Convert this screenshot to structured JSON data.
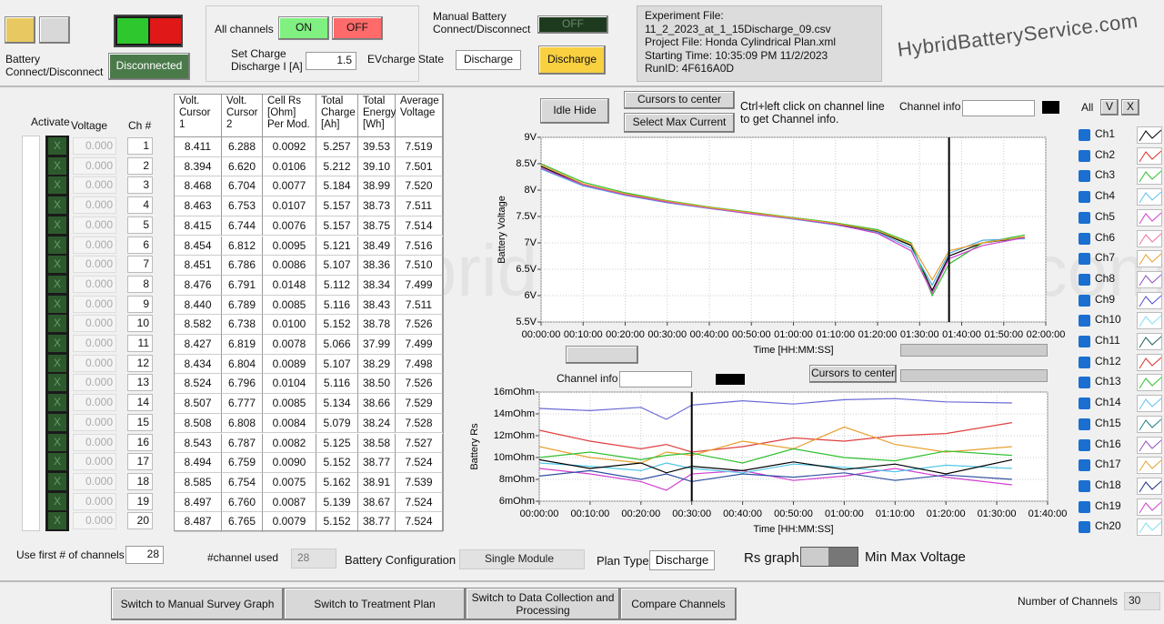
{
  "header": {
    "battery_label": "Battery\nConnect/Disconnect",
    "disconnected": "Disconnected",
    "all_channels": "All channels",
    "on": "ON",
    "off": "OFF",
    "set_charge_label": "Set Charge\nDischarge  I [A]",
    "set_charge_value": "1.5",
    "manual_battery": "Manual Battery\nConnect/Disconnect",
    "manual_off": "OFF",
    "evcharge_label": "EVcharge State",
    "evcharge_value": "Discharge",
    "discharge_button": "Discharge",
    "experiment_lines": [
      "Experiment File:",
      "11_2_2023_at_1_15Discharge_09.csv",
      "Project File: Honda Cylindrical Plan.xml",
      "Starting Time: 10:35:09 PM 11/2/2023",
      "RunID: 4F616A0D"
    ],
    "logo": "HybridBatteryService.com"
  },
  "left": {
    "activate": "Activate",
    "voltage": "Voltage",
    "ch": "Ch #",
    "activate_mark": "X",
    "voltages": [
      "0.000",
      "0.000",
      "0.000",
      "0.000",
      "0.000",
      "0.000",
      "0.000",
      "0.000",
      "0.000",
      "0.000",
      "0.000",
      "0.000",
      "0.000",
      "0.000",
      "0.000",
      "0.000",
      "0.000",
      "0.000",
      "0.000",
      "0.000"
    ],
    "channels": [
      "1",
      "2",
      "3",
      "4",
      "5",
      "6",
      "7",
      "8",
      "9",
      "10",
      "11",
      "12",
      "13",
      "14",
      "15",
      "16",
      "17",
      "18",
      "19",
      "20"
    ]
  },
  "table": {
    "headers": [
      "Volt.\nCursor\n1",
      "Volt.\nCursor\n2",
      "Cell Rs\n[Ohm]\nPer Mod.",
      "Total\nCharge\n[Ah]",
      "Total\nEnergy\n[Wh]",
      "Average\nVoltage"
    ],
    "rows": [
      [
        "8.411",
        "6.288",
        "0.0092",
        "5.257",
        "39.53",
        "7.519"
      ],
      [
        "8.394",
        "6.620",
        "0.0106",
        "5.212",
        "39.10",
        "7.501"
      ],
      [
        "8.468",
        "6.704",
        "0.0077",
        "5.184",
        "38.99",
        "7.520"
      ],
      [
        "8.463",
        "6.753",
        "0.0107",
        "5.157",
        "38.73",
        "7.511"
      ],
      [
        "8.415",
        "6.744",
        "0.0076",
        "5.157",
        "38.75",
        "7.514"
      ],
      [
        "8.454",
        "6.812",
        "0.0095",
        "5.121",
        "38.49",
        "7.516"
      ],
      [
        "8.451",
        "6.786",
        "0.0086",
        "5.107",
        "38.36",
        "7.510"
      ],
      [
        "8.476",
        "6.791",
        "0.0148",
        "5.112",
        "38.34",
        "7.499"
      ],
      [
        "8.440",
        "6.789",
        "0.0085",
        "5.116",
        "38.43",
        "7.511"
      ],
      [
        "8.582",
        "6.738",
        "0.0100",
        "5.152",
        "38.78",
        "7.526"
      ],
      [
        "8.427",
        "6.819",
        "0.0078",
        "5.066",
        "37.99",
        "7.499"
      ],
      [
        "8.434",
        "6.804",
        "0.0089",
        "5.107",
        "38.29",
        "7.498"
      ],
      [
        "8.524",
        "6.796",
        "0.0104",
        "5.116",
        "38.50",
        "7.526"
      ],
      [
        "8.507",
        "6.777",
        "0.0085",
        "5.134",
        "38.66",
        "7.529"
      ],
      [
        "8.508",
        "6.808",
        "0.0084",
        "5.079",
        "38.24",
        "7.528"
      ],
      [
        "8.543",
        "6.787",
        "0.0082",
        "5.125",
        "38.58",
        "7.527"
      ],
      [
        "8.494",
        "6.759",
        "0.0090",
        "5.152",
        "38.77",
        "7.524"
      ],
      [
        "8.585",
        "6.754",
        "0.0075",
        "5.162",
        "38.91",
        "7.539"
      ],
      [
        "8.497",
        "6.760",
        "0.0087",
        "5.139",
        "38.67",
        "7.524"
      ],
      [
        "8.487",
        "6.765",
        "0.0079",
        "5.152",
        "38.77",
        "7.524"
      ]
    ]
  },
  "controls": {
    "idle_hide": "Idle Hide",
    "cursors_center": "Cursors to center",
    "select_max": "Select  Max Current",
    "hint": "Ctrl+left click on channel line\nto get Channel info.",
    "channel_info": "Channel info",
    "all": "All",
    "v": "V",
    "x": "X",
    "channel_info_2": "Channel info",
    "cursors_center_2": "Cursors to center"
  },
  "channel_list": [
    {
      "name": "Ch1",
      "color": "#000000"
    },
    {
      "name": "Ch2",
      "color": "#e03030"
    },
    {
      "name": "Ch3",
      "color": "#30c030"
    },
    {
      "name": "Ch4",
      "color": "#60c0f0"
    },
    {
      "name": "Ch5",
      "color": "#d040d0"
    },
    {
      "name": "Ch6",
      "color": "#f070a0"
    },
    {
      "name": "Ch7",
      "color": "#e8a030"
    },
    {
      "name": "Ch8",
      "color": "#9050c0"
    },
    {
      "name": "Ch9",
      "color": "#5050d0"
    },
    {
      "name": "Ch10",
      "color": "#80e0f0"
    },
    {
      "name": "Ch11",
      "color": "#206060"
    },
    {
      "name": "Ch12",
      "color": "#e03030"
    },
    {
      "name": "Ch13",
      "color": "#30c030"
    },
    {
      "name": "Ch14",
      "color": "#60c0f0"
    },
    {
      "name": "Ch15",
      "color": "#208080"
    },
    {
      "name": "Ch16",
      "color": "#9050c0"
    },
    {
      "name": "Ch17",
      "color": "#e8a030"
    },
    {
      "name": "Ch18",
      "color": "#203080"
    },
    {
      "name": "Ch19",
      "color": "#d040d0"
    },
    {
      "name": "Ch20",
      "color": "#80e0f0"
    }
  ],
  "chart_data": [
    {
      "type": "line",
      "y_label": "Battery Voltage",
      "x_label": "Time [HH:MM:SS]",
      "cursor": 97,
      "xlim": [
        0,
        120
      ],
      "xticks": [
        {
          "value": 0,
          "label": "00:00:00"
        },
        {
          "value": 10,
          "label": "00:10:00"
        },
        {
          "value": 20,
          "label": "00:20:00"
        },
        {
          "value": 30,
          "label": "00:30:00"
        },
        {
          "value": 40,
          "label": "00:40:00"
        },
        {
          "value": 50,
          "label": "00:50:00"
        },
        {
          "value": 60,
          "label": "01:00:00"
        },
        {
          "value": 70,
          "label": "01:10:00"
        },
        {
          "value": 80,
          "label": "01:20:00"
        },
        {
          "value": 90,
          "label": "01:30:00"
        },
        {
          "value": 100,
          "label": "01:40:00"
        },
        {
          "value": 110,
          "label": "01:50:00"
        },
        {
          "value": 120,
          "label": "02:00:00"
        }
      ],
      "ylim": [
        5.5,
        9
      ],
      "yticks": [
        {
          "value": 5.5,
          "label": "5.5V"
        },
        {
          "value": 6,
          "label": "6V"
        },
        {
          "value": 6.5,
          "label": "6.5V"
        },
        {
          "value": 7,
          "label": "7V"
        },
        {
          "value": 7.5,
          "label": "7.5V"
        },
        {
          "value": 8,
          "label": "8V"
        },
        {
          "value": 8.5,
          "label": "8.5V"
        },
        {
          "value": 9,
          "label": "9V"
        }
      ],
      "grid": true,
      "x": [
        0,
        10,
        20,
        30,
        40,
        50,
        60,
        70,
        80,
        88,
        93,
        97,
        105,
        115
      ],
      "series": [
        {
          "color": "#000000",
          "values": [
            8.45,
            8.1,
            7.92,
            7.78,
            7.66,
            7.56,
            7.46,
            7.36,
            7.22,
            6.95,
            6.1,
            6.75,
            7.0,
            7.1
          ]
        },
        {
          "color": "#30c030",
          "values": [
            8.5,
            8.15,
            7.95,
            7.8,
            7.68,
            7.58,
            7.48,
            7.38,
            7.25,
            7.0,
            6.0,
            6.6,
            7.0,
            7.15
          ]
        },
        {
          "color": "#4aa8e0",
          "values": [
            8.4,
            8.08,
            7.9,
            7.76,
            7.65,
            7.55,
            7.45,
            7.34,
            7.2,
            6.9,
            6.2,
            6.8,
            7.05,
            7.08
          ]
        },
        {
          "color": "#d040d0",
          "values": [
            8.42,
            8.1,
            7.91,
            7.77,
            7.66,
            7.55,
            7.46,
            7.35,
            7.18,
            6.85,
            6.05,
            6.7,
            6.95,
            7.1
          ]
        },
        {
          "color": "#e8a030",
          "values": [
            8.48,
            8.12,
            7.93,
            7.79,
            7.67,
            7.57,
            7.47,
            7.37,
            7.23,
            6.98,
            6.3,
            6.85,
            7.0,
            7.12
          ]
        }
      ]
    },
    {
      "type": "line",
      "y_label": "Battery Rs",
      "x_label": "Time [HH:MM:SS]",
      "cursor": 30,
      "xlim": [
        0,
        100
      ],
      "xticks": [
        {
          "value": 0,
          "label": "00:00:00"
        },
        {
          "value": 10,
          "label": "00:10:00"
        },
        {
          "value": 20,
          "label": "00:20:00"
        },
        {
          "value": 30,
          "label": "00:30:00"
        },
        {
          "value": 40,
          "label": "00:40:00"
        },
        {
          "value": 50,
          "label": "00:50:00"
        },
        {
          "value": 60,
          "label": "01:00:00"
        },
        {
          "value": 70,
          "label": "01:10:00"
        },
        {
          "value": 80,
          "label": "01:20:00"
        },
        {
          "value": 90,
          "label": "01:30:00"
        },
        {
          "value": 100,
          "label": "01:40:00"
        }
      ],
      "ylim": [
        6,
        16
      ],
      "yticks": [
        {
          "value": 6,
          "label": "6mOhm"
        },
        {
          "value": 8,
          "label": "8mOhm"
        },
        {
          "value": 10,
          "label": "10mOhm"
        },
        {
          "value": 12,
          "label": "12mOhm"
        },
        {
          "value": 14,
          "label": "14mOhm"
        },
        {
          "value": 16,
          "label": "16mOhm"
        }
      ],
      "grid": true,
      "x": [
        0,
        10,
        20,
        25,
        30,
        40,
        50,
        60,
        70,
        80,
        93
      ],
      "series": [
        {
          "color": "#6b6bd6",
          "values": [
            14.5,
            14.3,
            14.6,
            13.5,
            14.8,
            15.2,
            14.9,
            15.3,
            15.4,
            15.1,
            15.0
          ]
        },
        {
          "color": "#e04040",
          "values": [
            12.5,
            11.5,
            10.8,
            11.2,
            10.5,
            11.0,
            11.8,
            11.5,
            12.0,
            12.2,
            13.2
          ]
        },
        {
          "color": "#e8a030",
          "values": [
            11.0,
            10.0,
            9.5,
            10.5,
            10.2,
            11.5,
            10.8,
            12.8,
            11.2,
            10.5,
            11.0
          ]
        },
        {
          "color": "#30c030",
          "values": [
            10.0,
            10.5,
            9.8,
            10.2,
            10.4,
            9.5,
            10.8,
            10.0,
            9.7,
            10.6,
            10.2
          ]
        },
        {
          "color": "#d040d0",
          "values": [
            9.0,
            8.5,
            7.8,
            7.0,
            8.5,
            8.8,
            7.9,
            8.3,
            9.0,
            8.2,
            7.5
          ]
        },
        {
          "color": "#50c8e8",
          "values": [
            9.5,
            9.2,
            8.8,
            9.5,
            9.0,
            8.6,
            9.4,
            9.1,
            8.7,
            9.3,
            9.0
          ]
        },
        {
          "color": "#000000",
          "values": [
            9.8,
            9.0,
            9.5,
            8.6,
            9.2,
            8.8,
            9.6,
            8.9,
            9.4,
            8.5,
            9.8
          ]
        },
        {
          "color": "#3050a0",
          "values": [
            8.3,
            8.8,
            8.0,
            8.5,
            7.8,
            8.5,
            8.2,
            8.6,
            7.9,
            8.4,
            8.0
          ]
        }
      ]
    }
  ],
  "bottom": {
    "use_first": "Use first #  of channels",
    "use_first_value": "28",
    "channel_used": "#channel used",
    "channel_used_value": "28",
    "battery_config": "Battery Configuration",
    "single_module": "Single Module",
    "plan_type": "Plan Type",
    "plan_value": "Discharge",
    "rs_graph": "Rs graph",
    "min_max": "Min Max Voltage"
  },
  "footer": {
    "buttons": [
      "Switch to Manual  Survey Graph",
      "Switch to Treatment Plan",
      "Switch to Data Collection and\nProcessing",
      "Compare  Channels"
    ],
    "num_channels": "Number of  Channels",
    "num_value": "30"
  }
}
